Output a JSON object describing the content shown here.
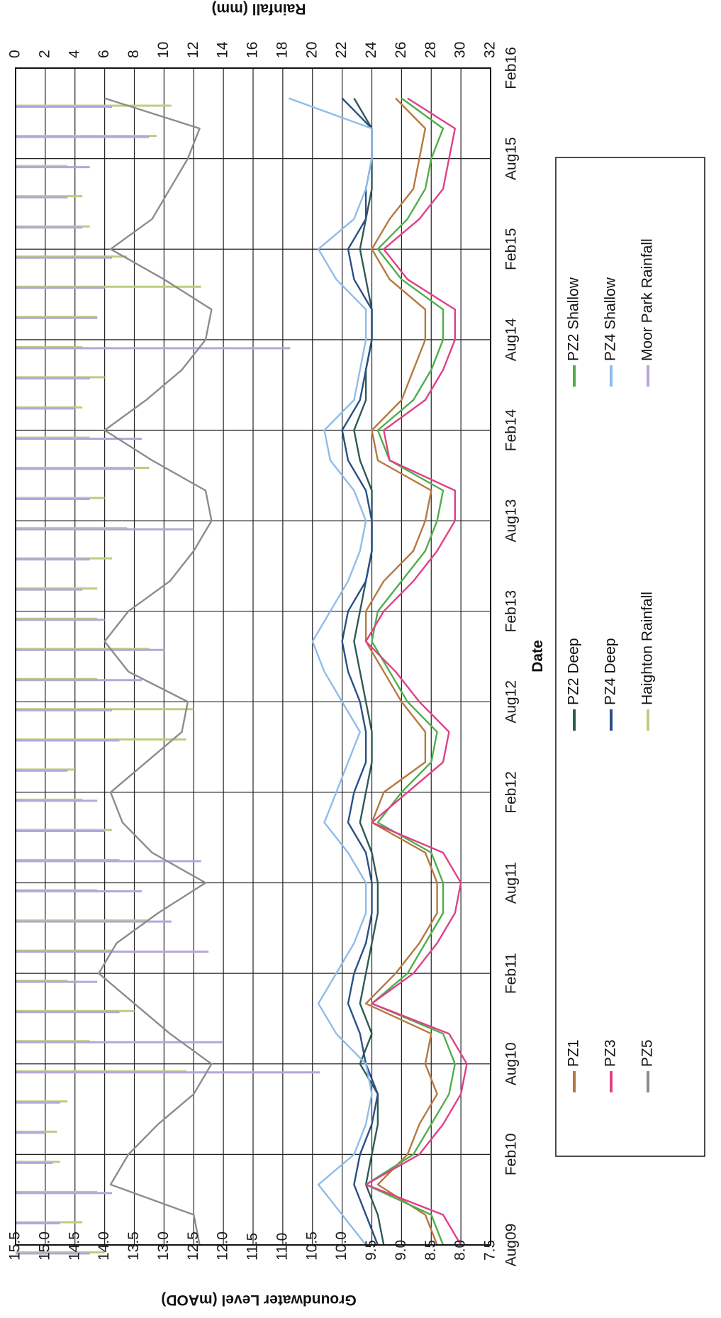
{
  "chart_data": {
    "type": "line",
    "orientation": "rotated-90-clockwise",
    "x_axis": {
      "label": "Date",
      "ticks": [
        "Aug09",
        "Feb10",
        "Aug10",
        "Feb11",
        "Aug11",
        "Feb12",
        "Aug12",
        "Feb13",
        "Aug13",
        "Feb14",
        "Aug14",
        "Feb15",
        "Aug15",
        "Feb16"
      ],
      "range": [
        "2009-08-01",
        "2016-02-01"
      ]
    },
    "y_axis_left": {
      "label": "Groundwater Level (mAOD)",
      "range": [
        7.5,
        15.5
      ],
      "ticks": [
        "7.5",
        "8.0",
        "8.5",
        "9.0",
        "9.5",
        "10.0",
        "10.5",
        "11.0",
        "11.5",
        "12.0",
        "12.5",
        "13.0",
        "13.5",
        "14.0",
        "14.5",
        "15.0",
        "15.5"
      ]
    },
    "y_axis_right": {
      "label": "Rainfall (mm)",
      "range": [
        0,
        32
      ],
      "inverted": true,
      "ticks": [
        "0",
        "2",
        "4",
        "6",
        "8",
        "10",
        "12",
        "14",
        "16",
        "18",
        "20",
        "22",
        "24",
        "26",
        "28",
        "30",
        "32"
      ]
    },
    "grid": true,
    "legend_position": "bottom",
    "series": [
      {
        "name": "PZ1",
        "color": "#b5793f",
        "axis": "left",
        "x": [
          "2009-08",
          "2009-10",
          "2009-12",
          "2010-02",
          "2010-04",
          "2010-06",
          "2010-08",
          "2010-10",
          "2010-12",
          "2011-02",
          "2011-04",
          "2011-06",
          "2011-08",
          "2011-10",
          "2011-12",
          "2012-02",
          "2012-04",
          "2012-06",
          "2012-08",
          "2012-10",
          "2012-12",
          "2013-02",
          "2013-04",
          "2013-06",
          "2013-08",
          "2013-10",
          "2013-12",
          "2014-02",
          "2014-04",
          "2014-06",
          "2014-08",
          "2014-10",
          "2014-12",
          "2015-02",
          "2015-04",
          "2015-06",
          "2015-08",
          "2015-10",
          "2015-12"
        ],
        "values": [
          8.4,
          8.6,
          9.4,
          8.9,
          8.7,
          8.4,
          8.6,
          8.5,
          9.6,
          9.1,
          8.7,
          8.4,
          8.4,
          8.6,
          9.5,
          9.3,
          8.6,
          8.6,
          9.0,
          9.3,
          9.6,
          9.6,
          9.3,
          8.8,
          8.6,
          8.5,
          9.4,
          9.5,
          9.0,
          8.8,
          8.6,
          8.6,
          9.2,
          9.5,
          9.2,
          8.8,
          8.7,
          8.6,
          9.1
        ]
      },
      {
        "name": "PZ2 Deep",
        "color": "#2e5a57",
        "axis": "left",
        "x": [
          "2009-08",
          "2009-10",
          "2009-12",
          "2010-02",
          "2010-04",
          "2010-06",
          "2010-08",
          "2010-10",
          "2010-12",
          "2011-02",
          "2011-04",
          "2011-06",
          "2011-08",
          "2011-10",
          "2011-12",
          "2012-02",
          "2012-04",
          "2012-06",
          "2012-08",
          "2012-10",
          "2012-12",
          "2013-02",
          "2013-04",
          "2013-06",
          "2013-08",
          "2013-10",
          "2013-12",
          "2014-02",
          "2014-04",
          "2014-06",
          "2014-08",
          "2014-10",
          "2014-12",
          "2015-02",
          "2015-04",
          "2015-06",
          "2015-08",
          "2015-10",
          "2015-12"
        ],
        "values": [
          9.3,
          9.4,
          9.6,
          9.5,
          9.4,
          9.4,
          9.7,
          9.5,
          9.7,
          9.6,
          9.5,
          9.4,
          9.4,
          9.5,
          9.7,
          9.6,
          9.5,
          9.5,
          9.6,
          9.7,
          9.8,
          9.7,
          9.6,
          9.5,
          9.5,
          9.5,
          9.7,
          9.8,
          9.6,
          9.6,
          9.5,
          9.5,
          9.6,
          9.7,
          9.6,
          9.5,
          9.5,
          9.5,
          9.8
        ]
      },
      {
        "name": "PZ2 Shallow",
        "color": "#4fae4a",
        "axis": "left",
        "x": [
          "2009-08",
          "2009-10",
          "2009-12",
          "2010-02",
          "2010-04",
          "2010-06",
          "2010-08",
          "2010-10",
          "2010-12",
          "2011-02",
          "2011-04",
          "2011-06",
          "2011-08",
          "2011-10",
          "2011-12",
          "2012-02",
          "2012-04",
          "2012-06",
          "2012-08",
          "2012-10",
          "2012-12",
          "2013-02",
          "2013-04",
          "2013-06",
          "2013-08",
          "2013-10",
          "2013-12",
          "2014-02",
          "2014-04",
          "2014-06",
          "2014-08",
          "2014-10",
          "2014-12",
          "2015-02",
          "2015-04",
          "2015-06",
          "2015-08",
          "2015-10",
          "2015-12"
        ],
        "values": [
          8.3,
          8.5,
          9.6,
          8.8,
          8.5,
          8.2,
          8.1,
          8.3,
          9.5,
          8.9,
          8.6,
          8.3,
          8.3,
          8.5,
          9.4,
          9.0,
          8.5,
          8.4,
          8.9,
          9.2,
          9.5,
          9.4,
          9.0,
          8.6,
          8.4,
          8.3,
          9.2,
          9.4,
          8.8,
          8.5,
          8.3,
          8.3,
          9.0,
          9.4,
          8.9,
          8.6,
          8.5,
          8.3,
          9.0
        ]
      },
      {
        "name": "PZ3",
        "color": "#e0408a",
        "axis": "left",
        "x": [
          "2009-08",
          "2009-10",
          "2009-12",
          "2010-02",
          "2010-04",
          "2010-06",
          "2010-08",
          "2010-10",
          "2010-12",
          "2011-02",
          "2011-04",
          "2011-06",
          "2011-08",
          "2011-10",
          "2011-12",
          "2012-02",
          "2012-04",
          "2012-06",
          "2012-08",
          "2012-10",
          "2012-12",
          "2013-02",
          "2013-04",
          "2013-06",
          "2013-08",
          "2013-10",
          "2013-12",
          "2014-02",
          "2014-04",
          "2014-06",
          "2014-08",
          "2014-10",
          "2014-12",
          "2015-02",
          "2015-04",
          "2015-06",
          "2015-08",
          "2015-10",
          "2015-12"
        ],
        "values": [
          8.0,
          8.3,
          9.6,
          8.7,
          8.3,
          8.0,
          7.9,
          8.2,
          9.5,
          8.8,
          8.4,
          8.1,
          8.0,
          8.3,
          9.5,
          8.9,
          8.3,
          8.2,
          8.7,
          9.1,
          9.6,
          9.3,
          8.8,
          8.4,
          8.1,
          8.1,
          9.2,
          9.3,
          8.6,
          8.3,
          8.1,
          8.1,
          8.9,
          9.3,
          8.7,
          8.3,
          8.2,
          8.1,
          8.9
        ]
      },
      {
        "name": "PZ4 Deep",
        "color": "#2a4f86",
        "axis": "left",
        "x": [
          "2009-08",
          "2009-10",
          "2009-12",
          "2010-02",
          "2010-04",
          "2010-06",
          "2010-08",
          "2010-10",
          "2010-12",
          "2011-02",
          "2011-04",
          "2011-06",
          "2011-08",
          "2011-10",
          "2011-12",
          "2012-02",
          "2012-04",
          "2012-06",
          "2012-08",
          "2012-10",
          "2012-12",
          "2013-02",
          "2013-04",
          "2013-06",
          "2013-08",
          "2013-10",
          "2013-12",
          "2014-02",
          "2014-04",
          "2014-06",
          "2014-08",
          "2014-10",
          "2014-12",
          "2015-02",
          "2015-04",
          "2015-06",
          "2015-08",
          "2015-10",
          "2015-12"
        ],
        "values": [
          9.4,
          9.6,
          9.8,
          9.7,
          9.5,
          9.4,
          9.6,
          9.7,
          9.9,
          9.8,
          9.6,
          9.5,
          9.5,
          9.6,
          9.9,
          9.8,
          9.6,
          9.6,
          9.7,
          9.9,
          10.0,
          9.9,
          9.6,
          9.5,
          9.5,
          9.6,
          9.9,
          10.0,
          9.7,
          9.6,
          9.5,
          9.5,
          9.8,
          9.9,
          9.6,
          9.6,
          9.5,
          9.5,
          10.0
        ]
      },
      {
        "name": "PZ4 Shallow",
        "color": "#8fbcea",
        "axis": "left",
        "x": [
          "2009-08",
          "2009-10",
          "2009-12",
          "2010-02",
          "2010-04",
          "2010-06",
          "2010-08",
          "2010-10",
          "2010-12",
          "2011-02",
          "2011-04",
          "2011-06",
          "2011-08",
          "2011-10",
          "2011-12",
          "2012-02",
          "2012-04",
          "2012-06",
          "2012-08",
          "2012-10",
          "2012-12",
          "2013-02",
          "2013-04",
          "2013-06",
          "2013-08",
          "2013-10",
          "2013-12",
          "2014-02",
          "2014-04",
          "2014-06",
          "2014-08",
          "2014-10",
          "2014-12",
          "2015-02",
          "2015-04",
          "2015-06",
          "2015-08",
          "2015-10",
          "2015-12"
        ],
        "values": [
          9.6,
          10.0,
          10.4,
          9.8,
          9.6,
          9.5,
          9.6,
          10.1,
          10.4,
          10.1,
          9.8,
          9.6,
          9.6,
          9.9,
          10.3,
          10.1,
          9.9,
          9.7,
          10.0,
          10.3,
          10.5,
          10.2,
          9.9,
          9.7,
          9.6,
          9.8,
          10.2,
          10.3,
          9.8,
          9.7,
          9.6,
          9.6,
          10.1,
          10.4,
          9.8,
          9.6,
          9.5,
          9.5,
          10.9
        ]
      },
      {
        "name": "PZ5",
        "color": "#8c8c8c",
        "axis": "left",
        "x": [
          "2009-08",
          "2009-10",
          "2009-12",
          "2010-02",
          "2010-04",
          "2010-06",
          "2010-08",
          "2010-10",
          "2010-12",
          "2011-02",
          "2011-04",
          "2011-06",
          "2011-08",
          "2011-10",
          "2011-12",
          "2012-02",
          "2012-04",
          "2012-06",
          "2012-08",
          "2012-10",
          "2012-12",
          "2013-02",
          "2013-04",
          "2013-06",
          "2013-08",
          "2013-10",
          "2013-12",
          "2014-02",
          "2014-04",
          "2014-06",
          "2014-08",
          "2014-10",
          "2014-12",
          "2015-02",
          "2015-04",
          "2015-06",
          "2015-08",
          "2015-10",
          "2015-12"
        ],
        "values": [
          12.4,
          12.5,
          13.9,
          13.6,
          13.1,
          12.5,
          12.2,
          12.9,
          13.5,
          14.1,
          13.8,
          13.1,
          12.3,
          13.2,
          13.7,
          13.9,
          13.3,
          12.7,
          12.6,
          13.6,
          14.0,
          13.6,
          12.9,
          12.5,
          12.2,
          12.3,
          13.2,
          14.0,
          13.3,
          12.7,
          12.3,
          12.2,
          13.0,
          13.9,
          13.2,
          12.9,
          12.6,
          12.4,
          14.0
        ]
      },
      {
        "name": "Haighton Rainfall",
        "color": "#b9cf80",
        "axis": "right",
        "kind": "bars",
        "x": [
          "2009-08",
          "2009-10",
          "2009-12",
          "2010-02",
          "2010-04",
          "2010-06",
          "2010-08",
          "2010-10",
          "2010-12",
          "2011-02",
          "2011-04",
          "2011-06",
          "2011-08",
          "2011-10",
          "2011-12",
          "2012-02",
          "2012-04",
          "2012-06",
          "2012-08",
          "2012-10",
          "2012-12",
          "2013-02",
          "2013-04",
          "2013-06",
          "2013-08",
          "2013-10",
          "2013-12",
          "2014-02",
          "2014-04",
          "2014-06",
          "2014-08",
          "2014-10",
          "2014-12",
          "2015-02",
          "2015-04",
          "2015-06",
          "2015-08",
          "2015-10",
          "2015-12"
        ],
        "values": [
          6.0,
          4.5,
          5.5,
          3.0,
          2.8,
          3.5,
          11.5,
          5.0,
          8.0,
          3.5,
          6.5,
          9.0,
          5.5,
          7.0,
          6.5,
          4.5,
          4.0,
          11.5,
          12.0,
          5.5,
          9.0,
          5.5,
          5.5,
          6.5,
          7.5,
          6.0,
          9.0,
          5.0,
          4.5,
          6.0,
          4.5,
          5.5,
          12.5,
          7.5,
          5.0,
          4.5,
          3.5,
          9.5,
          10.5
        ]
      },
      {
        "name": "Moor Park Rainfall",
        "color": "#b7a6d8",
        "axis": "right",
        "kind": "bars",
        "x": [
          "2009-08",
          "2009-10",
          "2009-12",
          "2010-02",
          "2010-04",
          "2010-06",
          "2010-08",
          "2010-10",
          "2010-12",
          "2011-02",
          "2011-04",
          "2011-06",
          "2011-08",
          "2011-10",
          "2011-12",
          "2012-02",
          "2012-04",
          "2012-06",
          "2012-08",
          "2012-10",
          "2012-12",
          "2013-02",
          "2013-04",
          "2013-06",
          "2013-08",
          "2013-10",
          "2013-12",
          "2014-02",
          "2014-04",
          "2014-06",
          "2014-08",
          "2014-10",
          "2014-12",
          "2015-02",
          "2015-04",
          "2015-06",
          "2015-08",
          "2015-10",
          "2015-12"
        ],
        "values": [
          5.0,
          3.0,
          6.5,
          2.5,
          2.0,
          3.0,
          20.5,
          14.0,
          7.0,
          5.5,
          13.0,
          10.5,
          8.5,
          12.5,
          6.0,
          5.5,
          3.5,
          7.0,
          6.5,
          8.5,
          10.0,
          6.0,
          4.5,
          5.0,
          12.0,
          5.0,
          8.0,
          8.5,
          4.0,
          5.0,
          18.5,
          5.5,
          6.0,
          6.5,
          4.5,
          3.5,
          5.0,
          9.0,
          6.5
        ]
      }
    ]
  }
}
